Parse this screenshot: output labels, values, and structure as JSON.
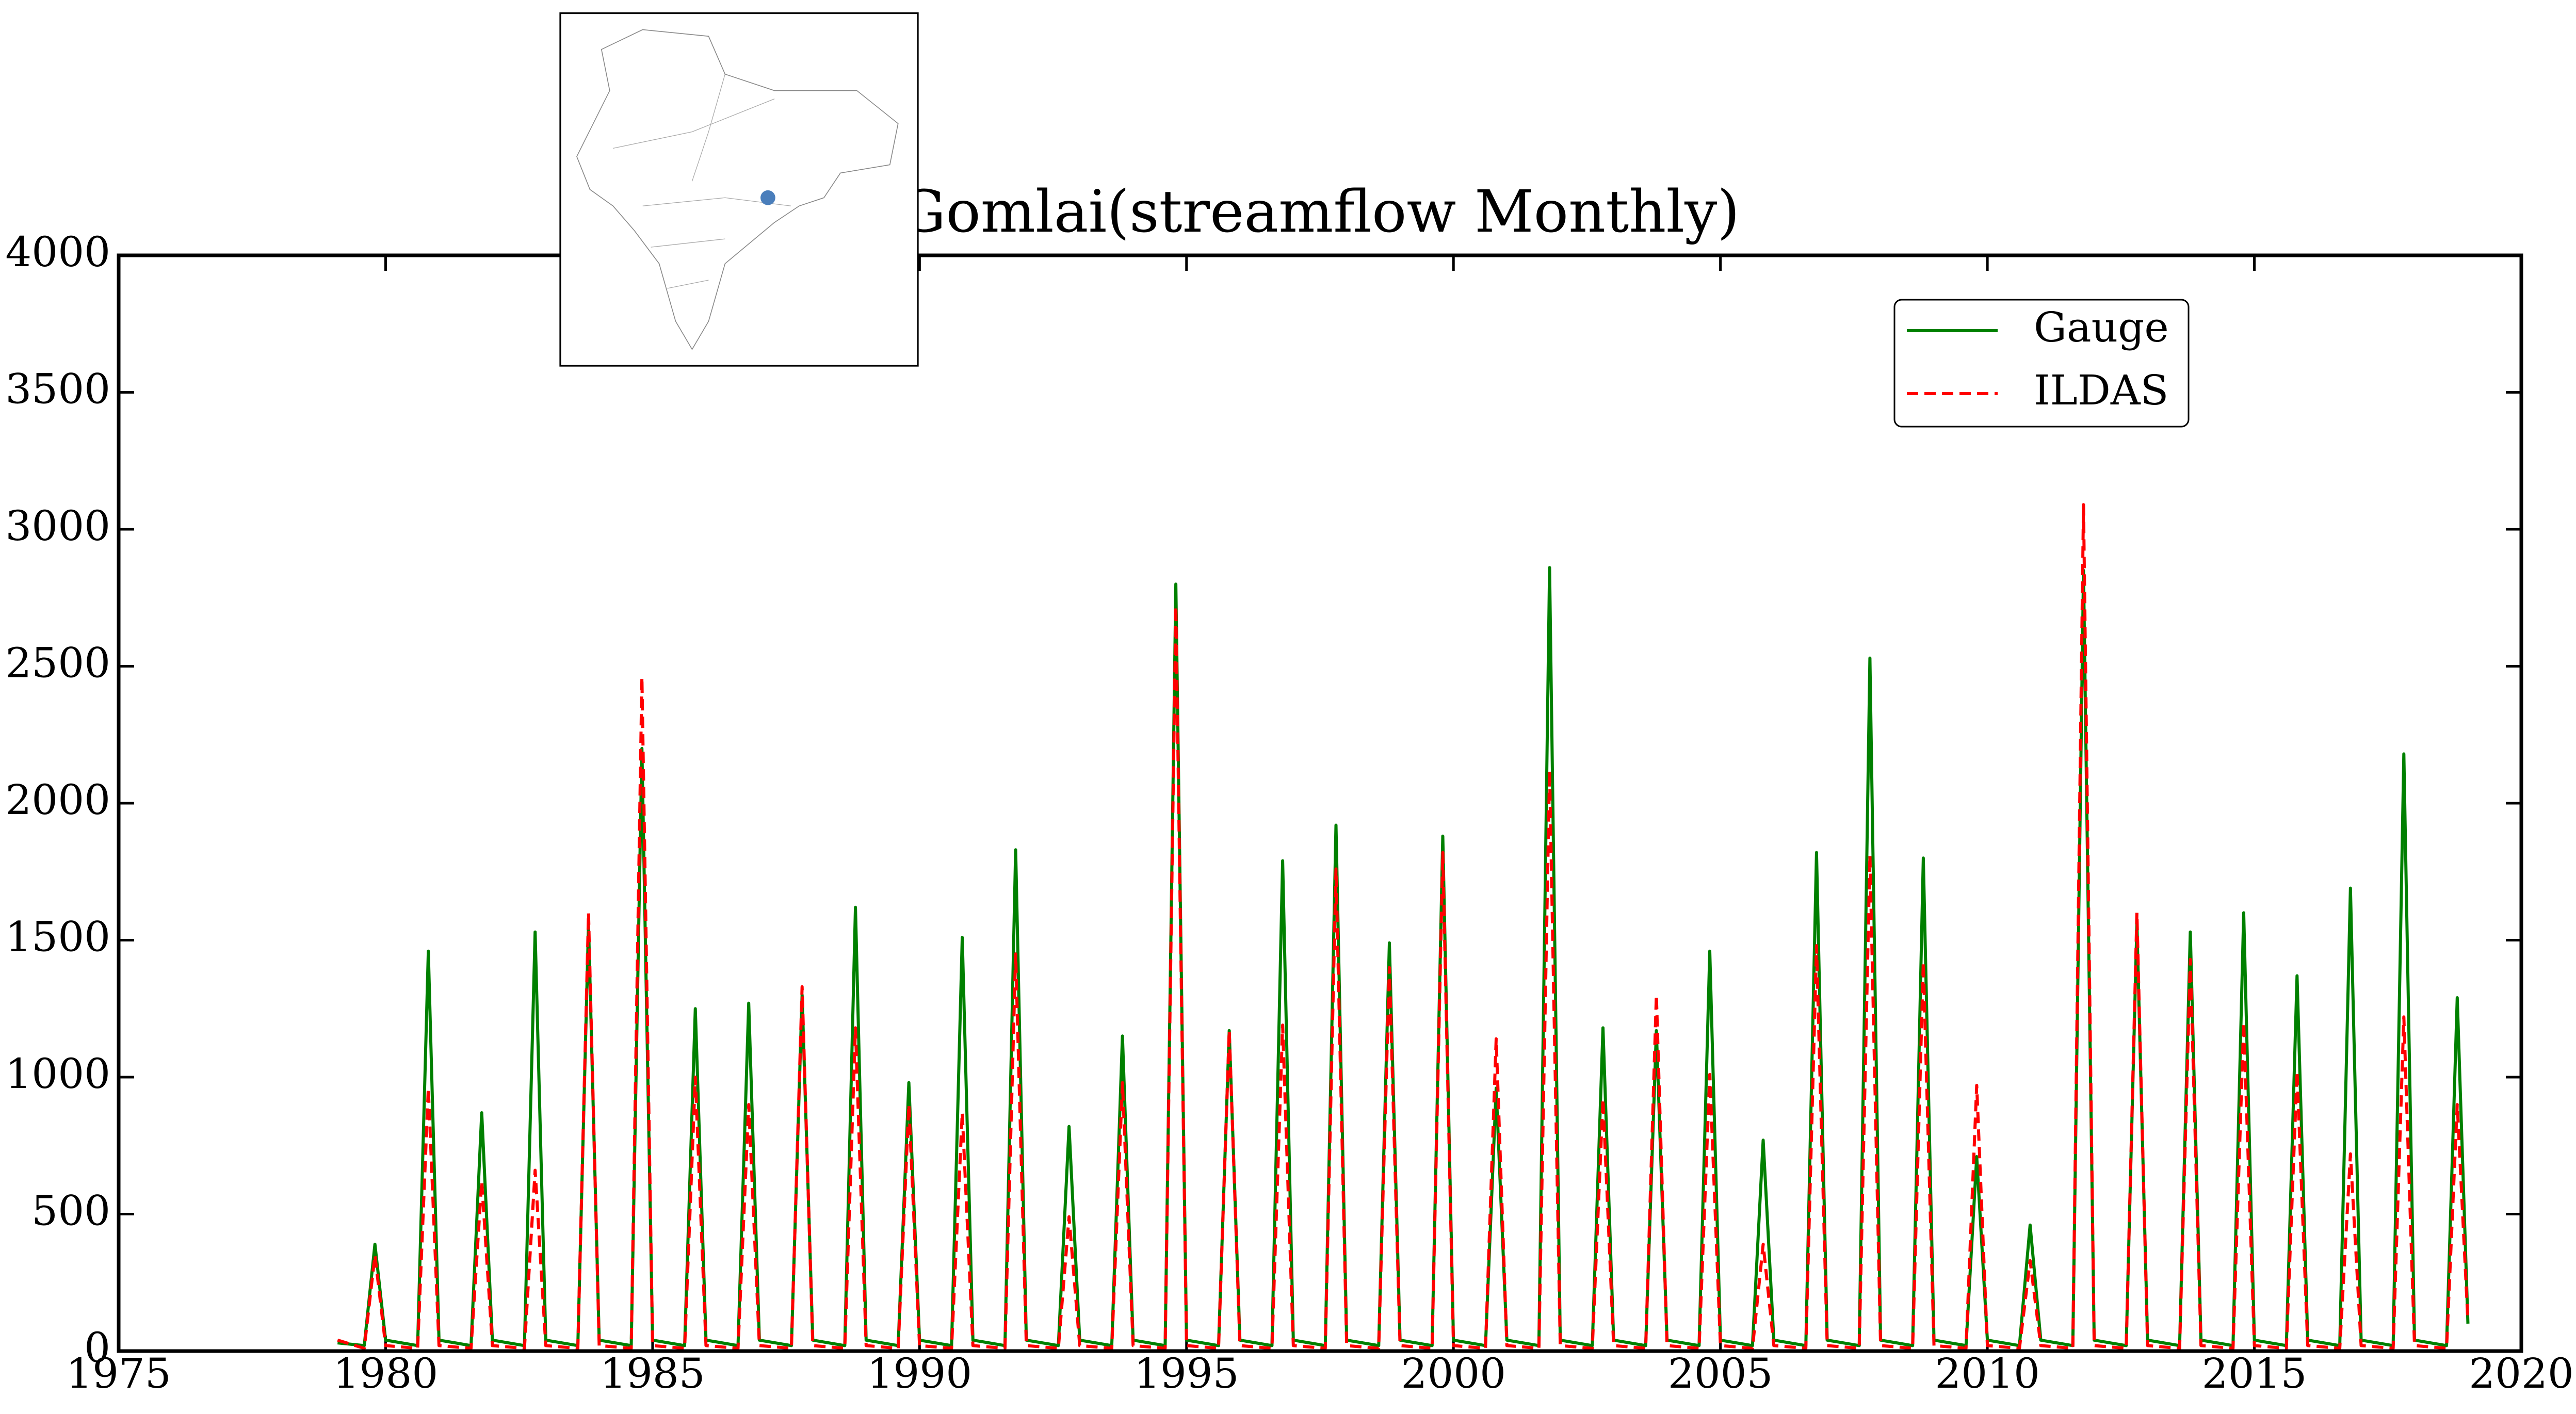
{
  "chart_data": {
    "type": "line",
    "title": "Gomlai(streamflow Monthly)",
    "x": [
      1979.1,
      1979.6,
      1979.8,
      1980.0,
      1980.6,
      1980.8,
      1981.0,
      1981.6,
      1981.8,
      1982.0,
      1982.6,
      1982.8,
      1983.0,
      1983.6,
      1983.8,
      1984.0,
      1984.6,
      1984.8,
      1985.0,
      1985.6,
      1985.8,
      1986.0,
      1986.6,
      1986.8,
      1987.0,
      1987.6,
      1987.8,
      1988.0,
      1988.6,
      1988.8,
      1989.0,
      1989.6,
      1989.8,
      1990.0,
      1990.6,
      1990.8,
      1991.0,
      1991.6,
      1991.8,
      1992.0,
      1992.6,
      1992.8,
      1993.0,
      1993.6,
      1993.8,
      1994.0,
      1994.6,
      1994.8,
      1995.0,
      1995.6,
      1995.8,
      1996.0,
      1996.6,
      1996.8,
      1997.0,
      1997.6,
      1997.8,
      1998.0,
      1998.6,
      1998.8,
      1999.0,
      1999.6,
      1999.8,
      2000.0,
      2000.6,
      2000.8,
      2001.0,
      2001.6,
      2001.8,
      2002.0,
      2002.6,
      2002.8,
      2003.0,
      2003.6,
      2003.8,
      2004.0,
      2004.6,
      2004.8,
      2005.0,
      2005.6,
      2005.8,
      2006.0,
      2006.6,
      2006.8,
      2007.0,
      2007.6,
      2007.8,
      2008.0,
      2008.6,
      2008.8,
      2009.0,
      2009.6,
      2009.8,
      2010.0,
      2010.6,
      2010.8,
      2011.0,
      2011.6,
      2011.8,
      2012.0,
      2012.6,
      2012.8,
      2013.0,
      2013.6,
      2013.8,
      2014.0,
      2014.6,
      2014.8,
      2015.0,
      2015.6,
      2015.8,
      2016.0,
      2016.6,
      2016.8,
      2017.0,
      2017.6,
      2017.8,
      2018.0,
      2018.6,
      2018.8,
      2019.0
    ],
    "series": [
      {
        "name": "Gauge",
        "color": "#008000",
        "linestyle": "solid",
        "values": [
          30,
          20,
          390,
          40,
          20,
          1460,
          40,
          20,
          870,
          40,
          20,
          1530,
          40,
          20,
          1560,
          40,
          20,
          2200,
          40,
          20,
          1250,
          40,
          20,
          1270,
          40,
          20,
          1300,
          40,
          20,
          1620,
          40,
          20,
          980,
          40,
          20,
          1510,
          40,
          20,
          1830,
          40,
          20,
          820,
          40,
          20,
          1150,
          40,
          20,
          2800,
          40,
          20,
          1170,
          40,
          20,
          1790,
          40,
          20,
          1920,
          40,
          20,
          1490,
          40,
          20,
          1880,
          40,
          20,
          960,
          40,
          20,
          2860,
          40,
          20,
          1180,
          40,
          20,
          1170,
          40,
          20,
          1460,
          40,
          20,
          770,
          40,
          20,
          1820,
          40,
          20,
          2530,
          40,
          20,
          1800,
          40,
          20,
          710,
          40,
          20,
          460,
          40,
          20,
          2850,
          40,
          20,
          1560,
          40,
          20,
          1530,
          40,
          20,
          1600,
          40,
          20,
          1370,
          40,
          20,
          1690,
          40,
          20,
          2180,
          40,
          20,
          1290,
          100
        ]
      },
      {
        "name": "ILDAS",
        "color": "#ff0000",
        "linestyle": "dashed",
        "values": [
          40,
          10,
          350,
          20,
          10,
          960,
          20,
          10,
          620,
          20,
          10,
          660,
          20,
          10,
          1600,
          20,
          10,
          2460,
          20,
          10,
          1000,
          20,
          10,
          900,
          20,
          10,
          1330,
          20,
          10,
          1180,
          20,
          10,
          900,
          20,
          10,
          870,
          20,
          10,
          1450,
          20,
          10,
          490,
          20,
          10,
          980,
          20,
          10,
          2720,
          20,
          10,
          1170,
          20,
          10,
          1190,
          20,
          10,
          1760,
          20,
          10,
          1400,
          20,
          10,
          1820,
          20,
          10,
          1140,
          20,
          10,
          2120,
          20,
          10,
          920,
          20,
          10,
          1300,
          20,
          10,
          1010,
          20,
          10,
          390,
          20,
          10,
          1480,
          20,
          10,
          1810,
          20,
          10,
          1420,
          20,
          10,
          970,
          20,
          10,
          330,
          20,
          10,
          3090,
          20,
          10,
          1600,
          20,
          10,
          1430,
          20,
          10,
          1200,
          20,
          10,
          1020,
          20,
          10,
          720,
          20,
          10,
          1220,
          20,
          10,
          900,
          110
        ]
      }
    ],
    "xlim": [
      1975,
      2020
    ],
    "xticks": [
      1975,
      1980,
      1985,
      1990,
      1995,
      2000,
      2005,
      2010,
      2015,
      2020
    ],
    "ylim": [
      0,
      4000
    ],
    "yticks": [
      0,
      500,
      1000,
      1500,
      2000,
      2500,
      3000,
      3500,
      4000
    ],
    "legend": "upper right"
  }
}
